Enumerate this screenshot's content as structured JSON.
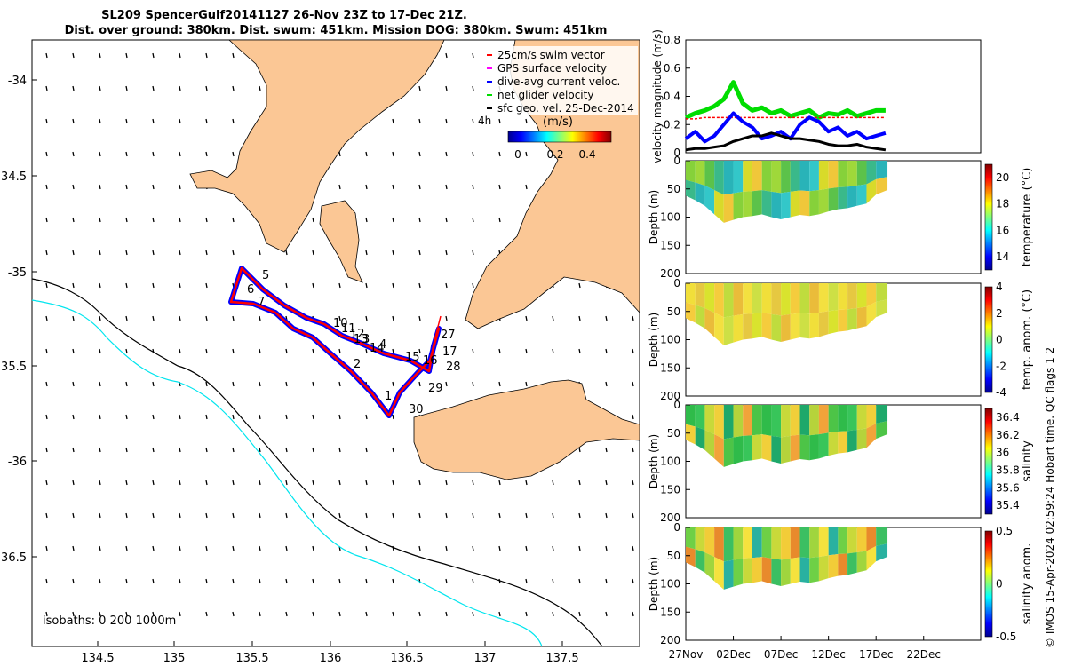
{
  "title": {
    "line1": "SL209 SpencerGulf20141127 26-Nov 23Z to 17-Dec 21Z.",
    "line2": "Dist. over ground: 380km. Dist. swum: 451km. Mission DOG: 380km. Swum: 451km"
  },
  "map": {
    "lon_ticks": [
      "134.5",
      "135",
      "135.5",
      "136",
      "136.5",
      "137",
      "137.5"
    ],
    "lat_ticks": [
      "-34",
      "34.5",
      "-35",
      "35.5",
      "-36",
      "36.5"
    ],
    "legend": [
      {
        "label": "25cm/s swim vector",
        "color": "#ff0000"
      },
      {
        "label": "GPS surface velocity",
        "color": "#ff00ff"
      },
      {
        "label": "dive-avg current veloc.",
        "color": "#0000ff"
      },
      {
        "label": "net glider velocity",
        "color": "#00dd00"
      },
      {
        "label": "sfc geo. vel. 25-Dec-2014",
        "color": "#000000"
      }
    ],
    "legend_note": "4h",
    "colorbar_title": "(m/s)",
    "colorbar_ticks": [
      "0",
      "0.2",
      "0.4"
    ],
    "isobaths_label": "isobaths: 0   200  1000m",
    "day_labels": [
      "1",
      "2",
      "3",
      "4",
      "5",
      "6",
      "7",
      "10",
      "11",
      "12",
      "13",
      "14",
      "15",
      "16",
      "17",
      "27",
      "28",
      "29",
      "30"
    ],
    "colors": {
      "land": "#fbc795",
      "track_red": "#ff0000",
      "track_blue": "#0000ff",
      "isobath_200": "#00e5ee",
      "isobath_1000": "#000000"
    }
  },
  "chart_data": [
    {
      "type": "line",
      "ylabel": "velocity magnitude (m/s)",
      "ylim": [
        0,
        0.8
      ],
      "yticks": [
        "0",
        "0.2",
        "0.4",
        "0.6",
        "0.8"
      ],
      "series": [
        {
          "color": "#00dd00",
          "x": [
            0,
            1,
            2,
            3,
            4,
            5,
            6,
            7,
            8,
            9,
            10,
            11,
            12,
            13,
            14,
            15,
            16,
            17,
            18,
            19,
            20,
            21
          ],
          "values": [
            0.25,
            0.28,
            0.3,
            0.33,
            0.38,
            0.5,
            0.35,
            0.3,
            0.32,
            0.28,
            0.3,
            0.26,
            0.28,
            0.3,
            0.25,
            0.28,
            0.27,
            0.3,
            0.26,
            0.28,
            0.3,
            0.3
          ]
        },
        {
          "color": "#ff0000",
          "x": [
            0,
            1,
            2,
            3,
            4,
            5,
            6,
            7,
            8,
            9,
            10,
            11,
            12,
            13,
            14,
            15,
            16,
            17,
            18,
            19,
            20,
            21
          ],
          "values": [
            0.24,
            0.24,
            0.25,
            0.25,
            0.25,
            0.25,
            0.25,
            0.25,
            0.25,
            0.25,
            0.25,
            0.25,
            0.25,
            0.25,
            0.25,
            0.25,
            0.25,
            0.25,
            0.25,
            0.25,
            0.25,
            0.25
          ]
        },
        {
          "color": "#0000ff",
          "x": [
            0,
            1,
            2,
            3,
            4,
            5,
            6,
            7,
            8,
            9,
            10,
            11,
            12,
            13,
            14,
            15,
            16,
            17,
            18,
            19,
            20,
            21
          ],
          "values": [
            0.1,
            0.15,
            0.08,
            0.12,
            0.2,
            0.28,
            0.22,
            0.18,
            0.1,
            0.12,
            0.15,
            0.1,
            0.2,
            0.25,
            0.22,
            0.15,
            0.18,
            0.12,
            0.15,
            0.1,
            0.12,
            0.14
          ]
        },
        {
          "color": "#000000",
          "x": [
            0,
            1,
            2,
            3,
            4,
            5,
            6,
            7,
            8,
            9,
            10,
            11,
            12,
            13,
            14,
            15,
            16,
            17,
            18,
            19,
            20,
            21
          ],
          "values": [
            0.02,
            0.03,
            0.03,
            0.04,
            0.05,
            0.08,
            0.1,
            0.12,
            0.12,
            0.14,
            0.12,
            0.1,
            0.1,
            0.09,
            0.08,
            0.06,
            0.05,
            0.05,
            0.06,
            0.04,
            0.03,
            0.02
          ]
        }
      ]
    },
    {
      "type": "heatmap",
      "ylabel": "Depth (m)",
      "clabel": "temperature (°C)",
      "yticks": [
        "0",
        "50",
        "100",
        "150",
        "200"
      ],
      "cticks": [
        "14",
        "16",
        "18",
        "20"
      ],
      "crange": [
        13,
        21
      ]
    },
    {
      "type": "heatmap",
      "ylabel": "Depth (m)",
      "clabel": "temp. anom. (°C)",
      "yticks": [
        "0",
        "50",
        "100",
        "150",
        "200"
      ],
      "cticks": [
        "-4",
        "-2",
        "0",
        "2",
        "4"
      ],
      "crange": [
        -4,
        4
      ]
    },
    {
      "type": "heatmap",
      "ylabel": "Depth (m)",
      "clabel": "salinity",
      "yticks": [
        "0",
        "50",
        "100",
        "150",
        "200"
      ],
      "cticks": [
        "35.4",
        "35.6",
        "35.8",
        "36",
        "36.2",
        "36.4"
      ],
      "crange": [
        35.3,
        36.5
      ]
    },
    {
      "type": "heatmap",
      "ylabel": "Depth (m)",
      "clabel": "salinity anom.",
      "yticks": [
        "0",
        "50",
        "100",
        "150",
        "200"
      ],
      "cticks": [
        "-0.5",
        "0",
        "0.5"
      ],
      "crange": [
        -0.5,
        0.5
      ]
    }
  ],
  "x_time_ticks": [
    "27Nov",
    "02Dec",
    "07Dec",
    "12Dec",
    "17Dec",
    "22Dec"
  ],
  "side_note": "© IMOS 15-Apr-2024 02:59:24 Hobart time. QC flags 1  2"
}
